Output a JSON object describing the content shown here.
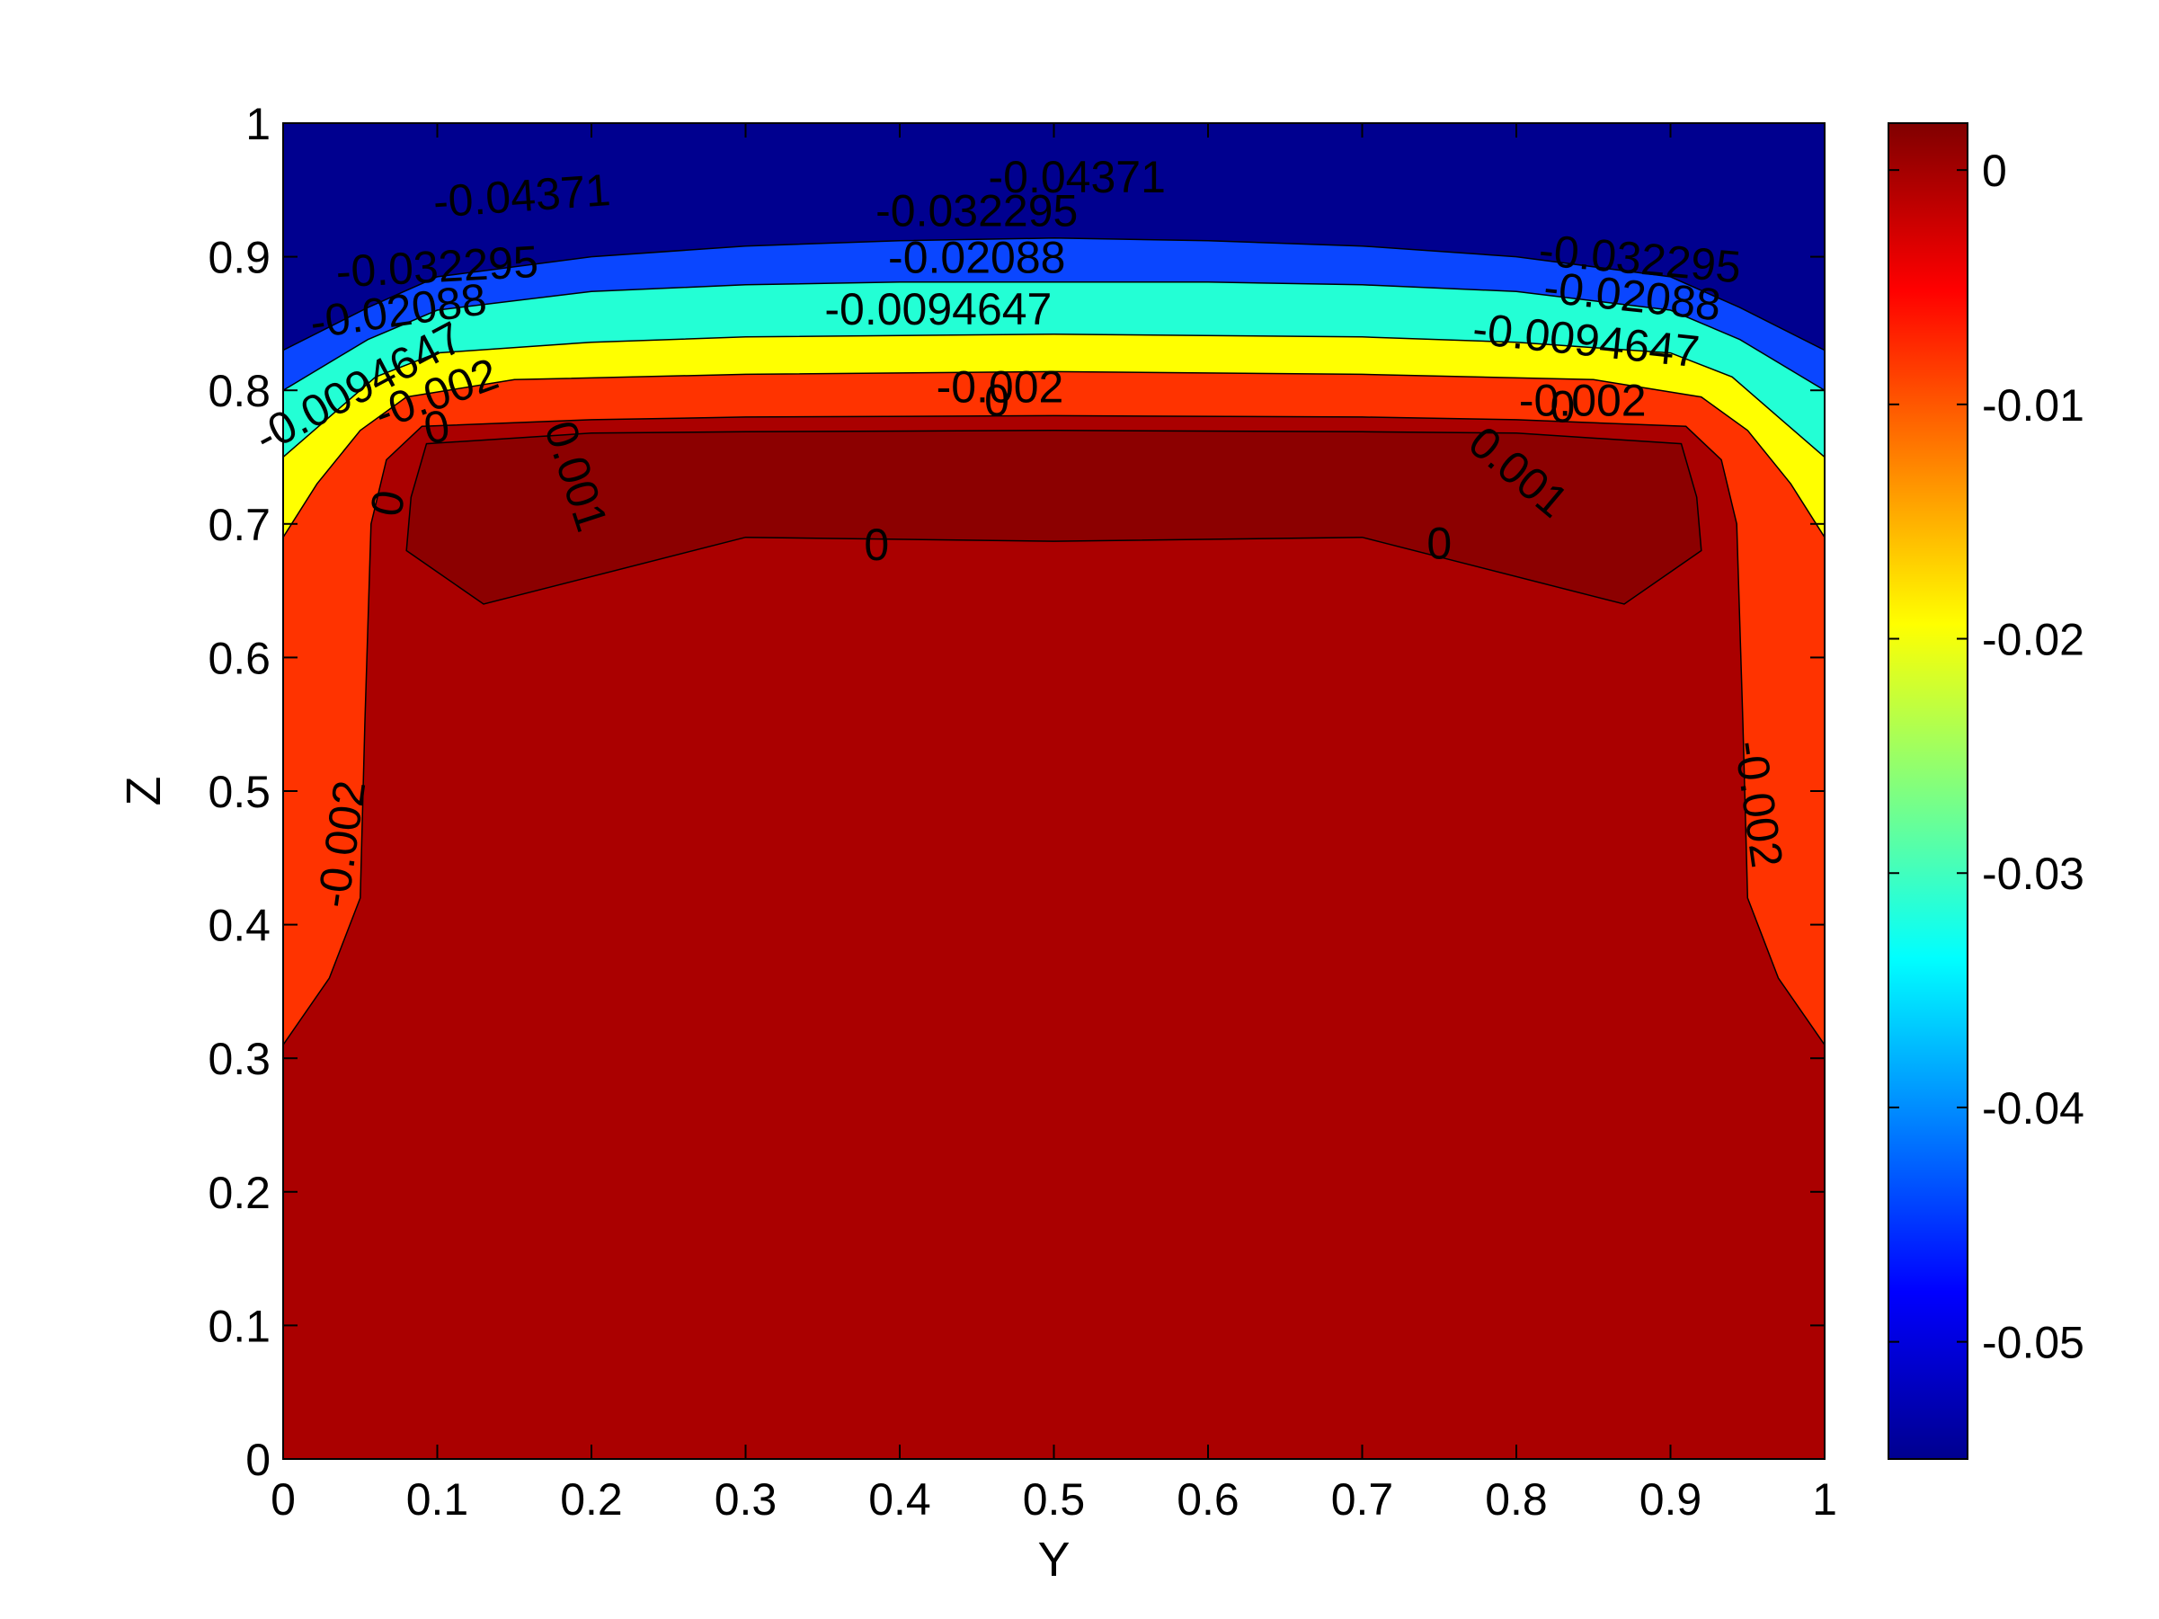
{
  "chart_data": {
    "type": "contour",
    "xlabel": "Y",
    "ylabel": "Z",
    "xlim": [
      0,
      1
    ],
    "ylim": [
      0,
      1
    ],
    "x_ticks": [
      "0",
      "0.1",
      "0.2",
      "0.3",
      "0.4",
      "0.5",
      "0.6",
      "0.7",
      "0.8",
      "0.9",
      "1"
    ],
    "y_ticks": [
      "0",
      "0.1",
      "0.2",
      "0.3",
      "0.4",
      "0.5",
      "0.6",
      "0.7",
      "0.8",
      "0.9",
      "1"
    ],
    "colorbar": {
      "colormap": "jet",
      "range": [
        -0.055,
        0.002
      ],
      "ticks": [
        0,
        -0.01,
        -0.02,
        -0.03,
        -0.04,
        -0.05
      ],
      "tick_labels": [
        "0",
        "-0.01",
        "-0.02",
        "-0.03",
        "-0.04",
        "-0.05"
      ]
    },
    "levels": [
      {
        "value": -0.04371,
        "label": "-0.04371",
        "color": "#0a46ff",
        "boundary": [
          [
            0,
            0.83
          ],
          [
            0.055,
            0.862
          ],
          [
            0.1,
            0.885
          ],
          [
            0.2,
            0.9
          ],
          [
            0.3,
            0.908
          ],
          [
            0.4,
            0.912
          ],
          [
            0.5,
            0.914
          ],
          [
            0.6,
            0.912
          ],
          [
            0.7,
            0.908
          ],
          [
            0.8,
            0.9
          ],
          [
            0.9,
            0.885
          ],
          [
            0.945,
            0.862
          ],
          [
            1,
            0.83
          ]
        ]
      },
      {
        "value": -0.032295,
        "label": "-0.032295",
        "color": "#23ffd5",
        "boundary": [
          [
            0,
            0.8
          ],
          [
            0.055,
            0.838
          ],
          [
            0.1,
            0.86
          ],
          [
            0.2,
            0.874
          ],
          [
            0.3,
            0.879
          ],
          [
            0.4,
            0.881
          ],
          [
            0.5,
            0.881
          ],
          [
            0.6,
            0.881
          ],
          [
            0.7,
            0.879
          ],
          [
            0.8,
            0.874
          ],
          [
            0.9,
            0.86
          ],
          [
            0.945,
            0.838
          ],
          [
            1,
            0.8
          ]
        ]
      },
      {
        "value": -0.02088,
        "label": "-0.02088",
        "color": "#ffff00",
        "boundary": [
          [
            0,
            0.75
          ],
          [
            0.03,
            0.78
          ],
          [
            0.06,
            0.81
          ],
          [
            0.1,
            0.828
          ],
          [
            0.2,
            0.836
          ],
          [
            0.3,
            0.84
          ],
          [
            0.5,
            0.842
          ],
          [
            0.7,
            0.84
          ],
          [
            0.8,
            0.836
          ],
          [
            0.9,
            0.828
          ],
          [
            0.94,
            0.81
          ],
          [
            0.97,
            0.78
          ],
          [
            1,
            0.75
          ]
        ]
      },
      {
        "value": -0.0094647,
        "label": "-0.0094647",
        "color": "#ff3300",
        "boundary": [
          [
            0,
            0.69
          ],
          [
            0.022,
            0.73
          ],
          [
            0.05,
            0.77
          ],
          [
            0.08,
            0.795
          ],
          [
            0.15,
            0.808
          ],
          [
            0.3,
            0.812
          ],
          [
            0.5,
            0.814
          ],
          [
            0.7,
            0.812
          ],
          [
            0.85,
            0.808
          ],
          [
            0.92,
            0.795
          ],
          [
            0.95,
            0.77
          ],
          [
            0.978,
            0.73
          ],
          [
            1,
            0.69
          ]
        ]
      },
      {
        "value": -0.002,
        "label": "-0.002",
        "color": "#aa0000",
        "boundary": [
          [
            0,
            0.31
          ],
          [
            0.03,
            0.36
          ],
          [
            0.05,
            0.42
          ],
          [
            0.053,
            0.55
          ],
          [
            0.057,
            0.7
          ],
          [
            0.067,
            0.748
          ],
          [
            0.09,
            0.773
          ],
          [
            0.2,
            0.778
          ],
          [
            0.3,
            0.78
          ],
          [
            0.5,
            0.781
          ],
          [
            0.7,
            0.78
          ],
          [
            0.8,
            0.778
          ],
          [
            0.91,
            0.773
          ],
          [
            0.933,
            0.748
          ],
          [
            0.943,
            0.7
          ],
          [
            0.947,
            0.55
          ],
          [
            0.95,
            0.42
          ],
          [
            0.97,
            0.36
          ],
          [
            1,
            0.31
          ]
        ]
      },
      {
        "value": 0,
        "label": "0",
        "color": "#8c0000",
        "boundary": [
          [
            0.08,
            0.68
          ],
          [
            0.083,
            0.72
          ],
          [
            0.093,
            0.76
          ],
          [
            0.2,
            0.768
          ],
          [
            0.3,
            0.769
          ],
          [
            0.5,
            0.77
          ],
          [
            0.7,
            0.769
          ],
          [
            0.8,
            0.768
          ],
          [
            0.907,
            0.76
          ],
          [
            0.917,
            0.72
          ],
          [
            0.92,
            0.68
          ],
          [
            0.87,
            0.64
          ],
          [
            0.7,
            0.69
          ],
          [
            0.5,
            0.687
          ],
          [
            0.3,
            0.69
          ],
          [
            0.13,
            0.64
          ]
        ]
      }
    ],
    "annotations": [
      {
        "text": "-0.04371",
        "x": 0.155,
        "y": 0.943,
        "angle": -4
      },
      {
        "text": "-0.04371",
        "x": 0.515,
        "y": 0.957,
        "angle": 0
      },
      {
        "text": "-0.032295",
        "x": 0.1,
        "y": 0.89,
        "angle": -3
      },
      {
        "text": "-0.032295",
        "x": 0.45,
        "y": 0.932,
        "angle": 0
      },
      {
        "text": "-0.032295",
        "x": 0.88,
        "y": 0.896,
        "angle": 5
      },
      {
        "text": "-0.02088",
        "x": 0.075,
        "y": 0.857,
        "angle": -8
      },
      {
        "text": "-0.02088",
        "x": 0.45,
        "y": 0.897,
        "angle": 0
      },
      {
        "text": "-0.02088",
        "x": 0.875,
        "y": 0.868,
        "angle": 6
      },
      {
        "text": "-0.0094647",
        "x": 0.05,
        "y": 0.8,
        "angle": -28
      },
      {
        "text": "-0.0094647",
        "x": 0.425,
        "y": 0.858,
        "angle": 0
      },
      {
        "text": "-0.0094647",
        "x": 0.845,
        "y": 0.835,
        "angle": 6
      },
      {
        "text": "-0.002",
        "x": 0.1,
        "y": 0.795,
        "angle": -20
      },
      {
        "text": "-0.002",
        "x": 0.465,
        "y": 0.8,
        "angle": 0
      },
      {
        "text": "-0.002",
        "x": 0.843,
        "y": 0.79,
        "angle": 0
      },
      {
        "text": "-0.002",
        "x": 0.04,
        "y": 0.46,
        "angle": -82
      },
      {
        "text": "-0.002",
        "x": 0.955,
        "y": 0.49,
        "angle": 82
      },
      {
        "text": "0",
        "x": 0.1,
        "y": 0.77,
        "angle": -10
      },
      {
        "text": "0",
        "x": 0.07,
        "y": 0.715,
        "angle": -80
      },
      {
        "text": "0",
        "x": 0.463,
        "y": 0.79,
        "angle": 0
      },
      {
        "text": "0",
        "x": 0.385,
        "y": 0.682,
        "angle": 0
      },
      {
        "text": "0",
        "x": 0.75,
        "y": 0.683,
        "angle": 0
      },
      {
        "text": "0",
        "x": 0.83,
        "y": 0.785,
        "angle": 0
      },
      {
        "text": "0.001",
        "x": 0.188,
        "y": 0.735,
        "angle": 72
      },
      {
        "text": "0.001",
        "x": 0.8,
        "y": 0.737,
        "angle": 40
      }
    ]
  }
}
